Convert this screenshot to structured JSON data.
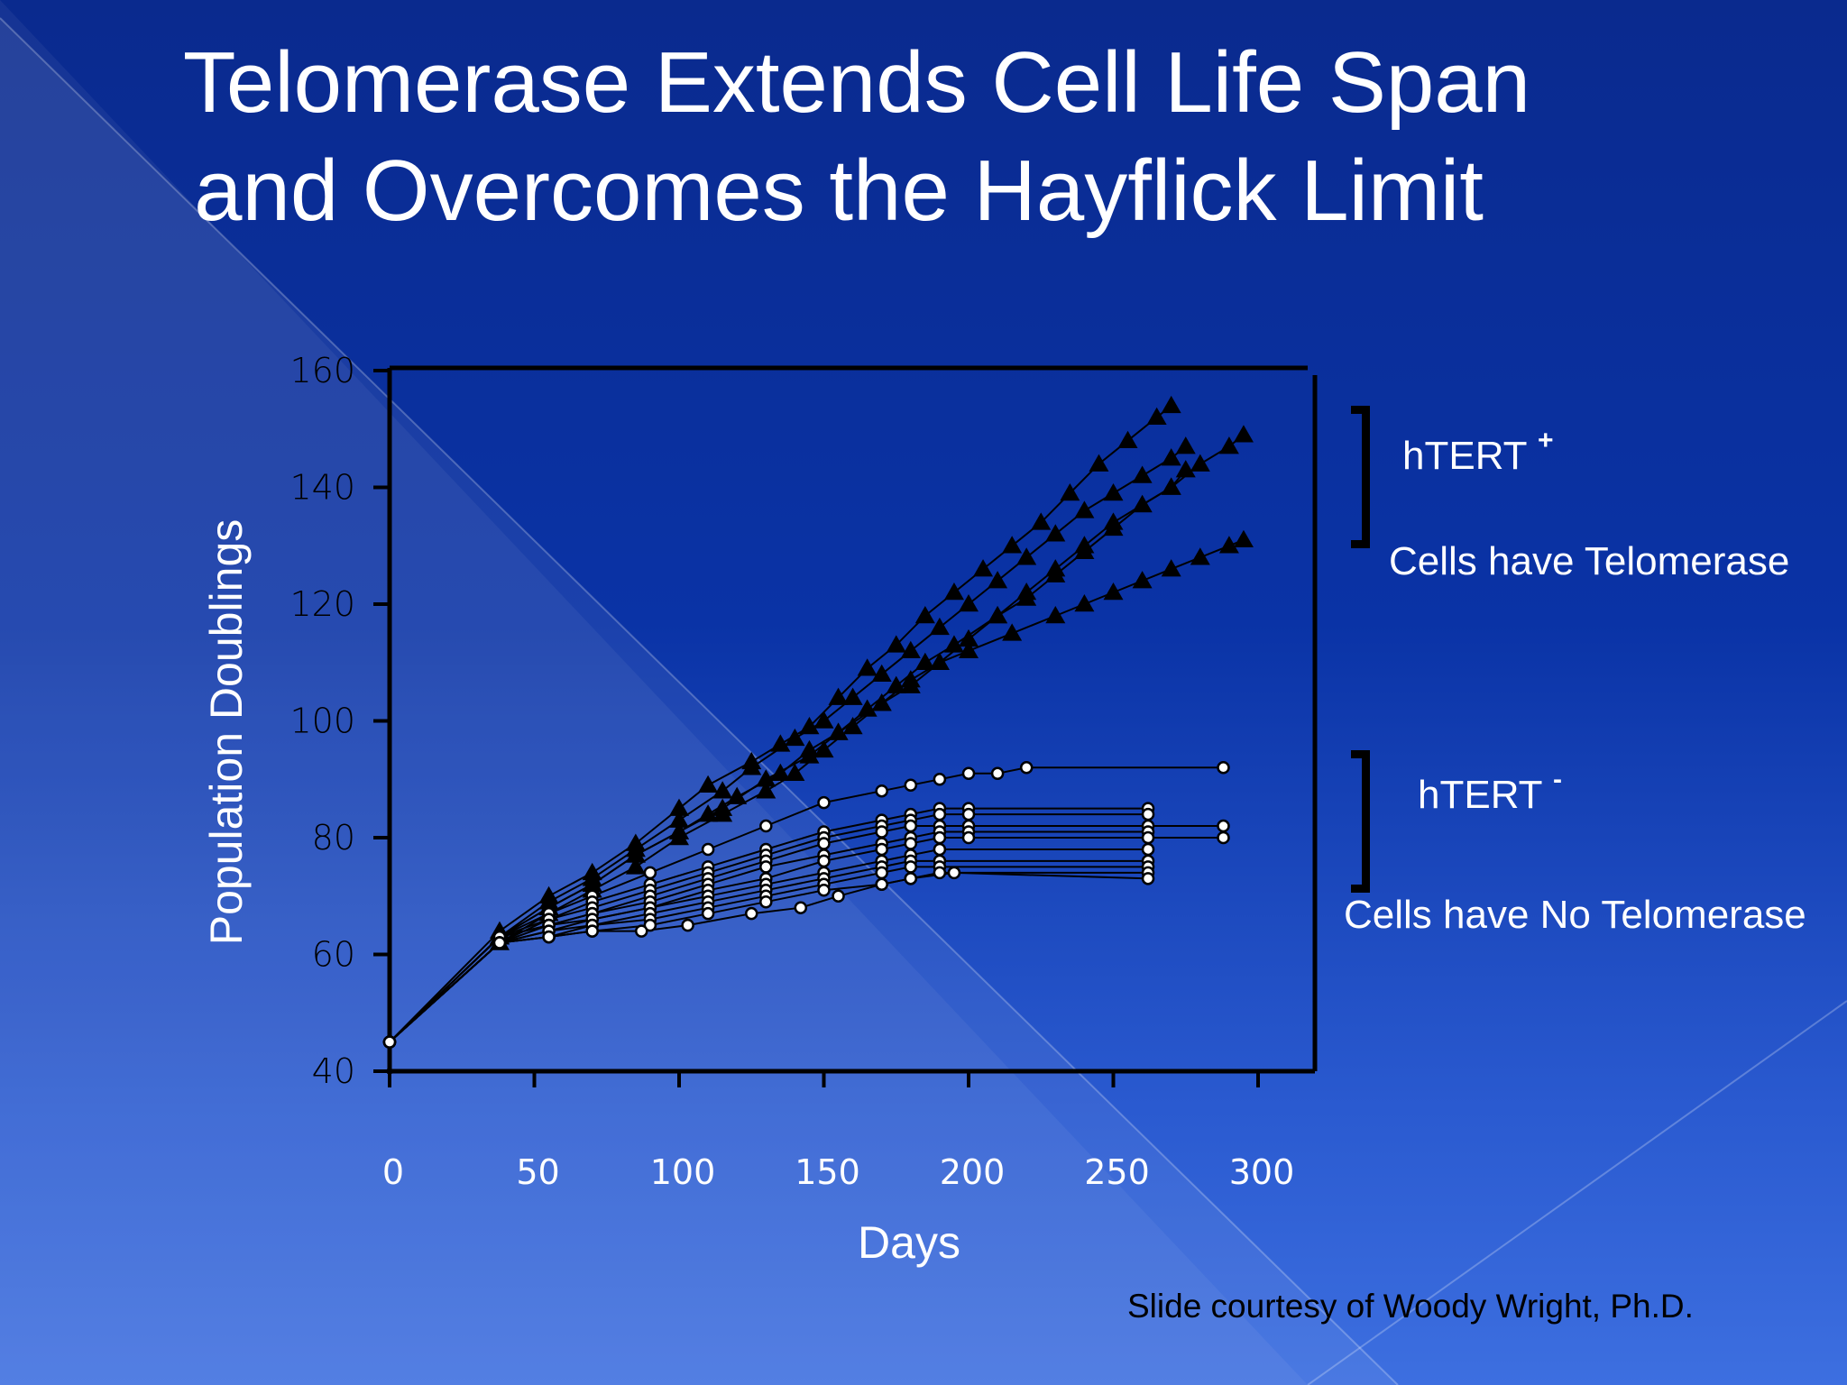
{
  "title": {
    "line1": "Telomerase Extends Cell Life Span",
    "line2": "and Overcomes the Hayflick Limit"
  },
  "annotations": {
    "htert_plus": "hTERT",
    "htert_plus_sup": "+",
    "htert_plus_desc": "Cells have   Telomerase",
    "htert_minus": "hTERT",
    "htert_minus_sup": "-",
    "htert_minus_desc": "Cells have No Telomerase"
  },
  "credit": "Slide courtesy of Woody Wright, Ph.D.",
  "colors": {
    "background_top": "#0a2a8e",
    "background_bottom": "#3d6fe0",
    "title_text": "#ffffff",
    "axis": "#000000",
    "htert_plus_marker": "#000000",
    "htert_minus_marker": "#ffffff"
  },
  "chart_data": {
    "type": "line",
    "xlabel": "Days",
    "ylabel": "Population Doublings",
    "xlim": [
      0,
      300
    ],
    "ylim": [
      40,
      160
    ],
    "xticks": [
      0,
      50,
      100,
      150,
      200,
      250,
      300
    ],
    "yticks": [
      40,
      60,
      80,
      100,
      120,
      140,
      160
    ],
    "series": [
      {
        "group": "hTERT+",
        "marker": "triangle",
        "x": [
          0,
          38,
          55,
          70,
          85,
          100,
          110,
          125,
          135,
          145,
          155,
          165,
          175,
          185,
          195,
          205,
          215,
          225,
          235,
          245,
          255,
          265,
          270
        ],
        "y": [
          45,
          64,
          70,
          74,
          79,
          85,
          89,
          93,
          96,
          99,
          104,
          109,
          113,
          118,
          122,
          126,
          130,
          134,
          139,
          144,
          148,
          152,
          154
        ]
      },
      {
        "group": "hTERT+",
        "marker": "triangle",
        "x": [
          0,
          38,
          55,
          70,
          85,
          100,
          115,
          125,
          140,
          150,
          160,
          170,
          180,
          190,
          200,
          210,
          220,
          230,
          240,
          250,
          260,
          270,
          275
        ],
        "y": [
          45,
          63,
          69,
          73,
          78,
          83,
          88,
          92,
          97,
          100,
          104,
          108,
          112,
          116,
          120,
          124,
          128,
          132,
          136,
          139,
          142,
          145,
          147
        ]
      },
      {
        "group": "hTERT+",
        "marker": "triangle",
        "x": [
          0,
          38,
          55,
          70,
          85,
          100,
          115,
          130,
          145,
          155,
          165,
          175,
          185,
          195,
          210,
          220,
          230,
          240,
          250,
          260,
          270,
          280,
          290,
          295
        ],
        "y": [
          45,
          63,
          68,
          72,
          77,
          81,
          85,
          90,
          94,
          98,
          102,
          106,
          110,
          113,
          118,
          121,
          125,
          129,
          133,
          137,
          140,
          144,
          147,
          149
        ]
      },
      {
        "group": "hTERT+",
        "marker": "triangle",
        "x": [
          0,
          38,
          55,
          70,
          85,
          100,
          115,
          130,
          140,
          150,
          160,
          170,
          180,
          190,
          200,
          210,
          220,
          230,
          240,
          250,
          260,
          270,
          275
        ],
        "y": [
          45,
          62,
          67,
          71,
          75,
          80,
          84,
          88,
          91,
          95,
          99,
          103,
          106,
          110,
          114,
          118,
          122,
          126,
          130,
          134,
          137,
          140,
          143
        ]
      },
      {
        "group": "hTERT+",
        "marker": "triangle",
        "x": [
          0,
          38,
          55,
          70,
          85,
          100,
          110,
          120,
          135,
          145,
          155,
          170,
          180,
          190,
          200,
          215,
          230,
          240,
          250,
          260,
          270,
          280,
          290,
          295
        ],
        "y": [
          45,
          63,
          68,
          72,
          77,
          81,
          84,
          87,
          91,
          95,
          98,
          103,
          107,
          110,
          112,
          115,
          118,
          120,
          122,
          124,
          126,
          128,
          130,
          131
        ]
      },
      {
        "group": "hTERT-",
        "marker": "circle",
        "x": [
          0,
          38,
          55,
          70,
          90,
          110,
          130,
          150,
          170,
          180,
          190,
          200,
          210,
          220,
          288
        ],
        "y": [
          45,
          63,
          67,
          70,
          74,
          78,
          82,
          86,
          88,
          89,
          90,
          91,
          91,
          92,
          92
        ]
      },
      {
        "group": "hTERT-",
        "marker": "circle",
        "x": [
          0,
          38,
          55,
          70,
          90,
          110,
          130,
          150,
          170,
          180,
          190,
          200,
          262
        ],
        "y": [
          45,
          63,
          66,
          69,
          72,
          75,
          78,
          81,
          83,
          84,
          85,
          85,
          85
        ]
      },
      {
        "group": "hTERT-",
        "marker": "circle",
        "x": [
          0,
          38,
          55,
          70,
          90,
          110,
          130,
          150,
          170,
          180,
          190,
          200,
          262
        ],
        "y": [
          45,
          62,
          66,
          68,
          71,
          74,
          77,
          80,
          82,
          83,
          84,
          84,
          84
        ]
      },
      {
        "group": "hTERT-",
        "marker": "circle",
        "x": [
          0,
          38,
          55,
          70,
          90,
          110,
          130,
          150,
          170,
          180,
          190,
          200,
          262,
          288
        ],
        "y": [
          45,
          63,
          65,
          67,
          70,
          73,
          76,
          79,
          81,
          82,
          82,
          82,
          82,
          82
        ]
      },
      {
        "group": "hTERT-",
        "marker": "circle",
        "x": [
          0,
          38,
          55,
          70,
          90,
          110,
          130,
          150,
          170,
          180,
          190,
          200,
          262
        ],
        "y": [
          45,
          62,
          65,
          67,
          69,
          72,
          75,
          77,
          79,
          80,
          81,
          81,
          81
        ]
      },
      {
        "group": "hTERT-",
        "marker": "circle",
        "x": [
          0,
          38,
          55,
          70,
          90,
          110,
          130,
          150,
          170,
          180,
          190,
          200,
          262,
          288
        ],
        "y": [
          45,
          63,
          65,
          66,
          68,
          71,
          73,
          76,
          78,
          79,
          80,
          80,
          80,
          80
        ]
      },
      {
        "group": "hTERT-",
        "marker": "circle",
        "x": [
          0,
          38,
          55,
          70,
          90,
          110,
          130,
          150,
          170,
          180,
          190,
          262
        ],
        "y": [
          45,
          62,
          64,
          66,
          68,
          70,
          72,
          74,
          76,
          77,
          78,
          78
        ]
      },
      {
        "group": "hTERT-",
        "marker": "circle",
        "x": [
          0,
          38,
          55,
          70,
          90,
          110,
          130,
          150,
          170,
          180,
          190,
          262
        ],
        "y": [
          45,
          62,
          64,
          65,
          67,
          69,
          71,
          73,
          75,
          76,
          76,
          76
        ]
      },
      {
        "group": "hTERT-",
        "marker": "circle",
        "x": [
          0,
          38,
          55,
          70,
          90,
          110,
          130,
          150,
          170,
          180,
          190,
          262
        ],
        "y": [
          45,
          62,
          63,
          65,
          66,
          68,
          70,
          72,
          74,
          75,
          75,
          75
        ]
      },
      {
        "group": "hTERT-",
        "marker": "circle",
        "x": [
          0,
          38,
          55,
          70,
          90,
          110,
          130,
          150,
          170,
          180,
          190,
          262
        ],
        "y": [
          45,
          62,
          63,
          64,
          65,
          67,
          69,
          71,
          72,
          73,
          74,
          74
        ]
      },
      {
        "group": "hTERT-",
        "marker": "circle",
        "x": [
          0,
          38,
          55,
          70,
          87,
          103,
          125,
          142,
          155,
          170,
          180,
          195,
          262
        ],
        "y": [
          45,
          62,
          63,
          64,
          64,
          65,
          67,
          68,
          70,
          72,
          73,
          74,
          73
        ]
      }
    ]
  }
}
